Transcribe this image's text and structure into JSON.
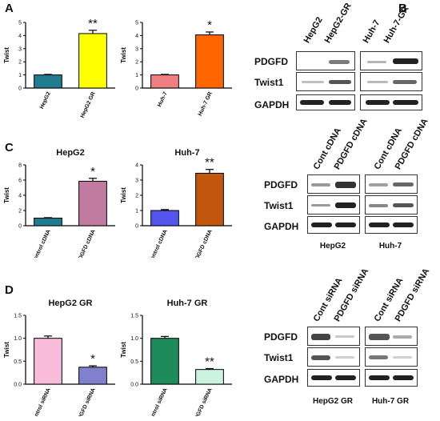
{
  "panels": {
    "a": "A",
    "b": "B",
    "c": "C",
    "d": "D"
  },
  "ylabel": "Twist",
  "chart_data": [
    {
      "type": "bar",
      "id": "A1",
      "title": "",
      "ylabel": "Twist",
      "ylim": [
        0,
        5
      ],
      "yticks": [
        0,
        1,
        2,
        3,
        4,
        5
      ],
      "categories": [
        "HepG2",
        "HepG2 GR"
      ],
      "values": [
        1.0,
        4.15
      ],
      "errors": [
        0.04,
        0.25
      ],
      "colors": [
        "#1f7c8f",
        "#ffff00"
      ],
      "sig": [
        "",
        "**"
      ]
    },
    {
      "type": "bar",
      "id": "A2",
      "title": "",
      "ylabel": "Twist",
      "ylim": [
        0,
        5
      ],
      "yticks": [
        0,
        1,
        2,
        3,
        4,
        5
      ],
      "categories": [
        "Huh-7",
        "Huh-7 GR"
      ],
      "values": [
        1.0,
        4.05
      ],
      "errors": [
        0.04,
        0.22
      ],
      "colors": [
        "#f08080",
        "#ff6600"
      ],
      "sig": [
        "",
        "*"
      ]
    },
    {
      "type": "bar",
      "id": "C1",
      "title": "HepG2",
      "ylabel": "Twist",
      "ylim": [
        0,
        8
      ],
      "yticks": [
        0,
        2,
        4,
        6,
        8
      ],
      "categories": [
        "Control cDNA",
        "PDGFD cDNA"
      ],
      "values": [
        1.0,
        5.85
      ],
      "errors": [
        0.06,
        0.38
      ],
      "colors": [
        "#1f7c8f",
        "#c27ba0"
      ],
      "sig": [
        "",
        "*"
      ]
    },
    {
      "type": "bar",
      "id": "C2",
      "title": "Huh-7",
      "ylabel": "Twist",
      "ylim": [
        0,
        4
      ],
      "yticks": [
        0,
        1,
        2,
        3,
        4
      ],
      "categories": [
        "Control cDNA",
        "PDGFD cDNA"
      ],
      "values": [
        1.0,
        3.45
      ],
      "errors": [
        0.06,
        0.25
      ],
      "colors": [
        "#5555ee",
        "#c0570c"
      ],
      "sig": [
        "",
        "**"
      ]
    },
    {
      "type": "bar",
      "id": "D1",
      "title": "HepG2 GR",
      "ylabel": "Twist",
      "ylim": [
        0,
        1.5
      ],
      "yticks": [
        0.0,
        0.5,
        1.0,
        1.5
      ],
      "categories": [
        "Control siRNA",
        "PDGFD siRNA"
      ],
      "values": [
        1.0,
        0.37
      ],
      "errors": [
        0.05,
        0.03
      ],
      "colors": [
        "#f8bbd9",
        "#8080cc"
      ],
      "sig": [
        "",
        "*"
      ]
    },
    {
      "type": "bar",
      "id": "D2",
      "title": "Huh-7 GR",
      "ylabel": "Twist",
      "ylim": [
        0,
        1.5
      ],
      "yticks": [
        0.0,
        0.5,
        1.0,
        1.5
      ],
      "categories": [
        "Control siRNA",
        "PDGFD siRNA"
      ],
      "values": [
        1.0,
        0.32
      ],
      "errors": [
        0.04,
        0.02
      ],
      "colors": [
        "#1e8c5a",
        "#ccf2e0"
      ],
      "sig": [
        "",
        "**"
      ]
    }
  ],
  "blots": {
    "b": {
      "lanes": [
        "HepG2",
        "HepG2-GR",
        "Huh-7",
        "Huh-7-GR"
      ],
      "rows": [
        "PDGFD",
        "Twist1",
        "GAPDH"
      ],
      "captions": []
    },
    "c": {
      "lanes": [
        "Cont cDNA",
        "PDGFD cDNA",
        "Cont cDNA",
        "PDGFD cDNA"
      ],
      "rows": [
        "PDGFD",
        "Twist1",
        "GAPDH"
      ],
      "captions": [
        "HepG2",
        "Huh-7"
      ]
    },
    "d": {
      "lanes": [
        "Cont siRNA",
        "PDGFD siRNA",
        "Cont siRNA",
        "PDGFD siRNA"
      ],
      "rows": [
        "PDGFD",
        "Twist1",
        "GAPDH"
      ],
      "captions": [
        "HepG2 GR",
        "Huh-7 GR"
      ]
    }
  }
}
